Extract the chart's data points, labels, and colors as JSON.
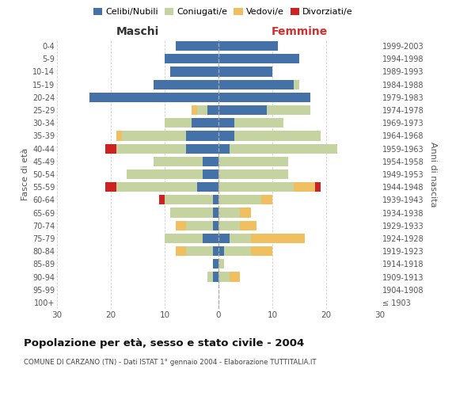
{
  "age_groups": [
    "100+",
    "95-99",
    "90-94",
    "85-89",
    "80-84",
    "75-79",
    "70-74",
    "65-69",
    "60-64",
    "55-59",
    "50-54",
    "45-49",
    "40-44",
    "35-39",
    "30-34",
    "25-29",
    "20-24",
    "15-19",
    "10-14",
    "5-9",
    "0-4"
  ],
  "birth_years": [
    "≤ 1903",
    "1904-1908",
    "1909-1913",
    "1914-1918",
    "1919-1923",
    "1924-1928",
    "1929-1933",
    "1934-1938",
    "1939-1943",
    "1944-1948",
    "1949-1953",
    "1954-1958",
    "1959-1963",
    "1964-1968",
    "1969-1973",
    "1974-1978",
    "1979-1983",
    "1984-1988",
    "1989-1993",
    "1994-1998",
    "1999-2003"
  ],
  "colors": {
    "celibi": "#4472a8",
    "coniugati": "#c5d3a0",
    "vedovi": "#f0c060",
    "divorziati": "#cc2222"
  },
  "maschi": {
    "celibi": [
      0,
      0,
      1,
      1,
      1,
      3,
      1,
      1,
      1,
      4,
      3,
      3,
      6,
      6,
      5,
      2,
      24,
      12,
      9,
      10,
      8
    ],
    "coniugati": [
      0,
      0,
      1,
      0,
      5,
      7,
      5,
      8,
      9,
      15,
      14,
      9,
      13,
      12,
      5,
      2,
      0,
      0,
      0,
      0,
      0
    ],
    "vedovi": [
      0,
      0,
      0,
      0,
      2,
      0,
      2,
      0,
      0,
      0,
      0,
      0,
      0,
      1,
      0,
      1,
      0,
      0,
      0,
      0,
      0
    ],
    "divorziati": [
      0,
      0,
      0,
      0,
      0,
      0,
      0,
      0,
      1,
      2,
      0,
      0,
      2,
      0,
      0,
      0,
      0,
      0,
      0,
      0,
      0
    ]
  },
  "femmine": {
    "celibi": [
      0,
      0,
      0,
      0,
      1,
      2,
      0,
      0,
      0,
      0,
      0,
      0,
      2,
      3,
      3,
      9,
      17,
      14,
      10,
      15,
      11
    ],
    "coniugati": [
      0,
      0,
      2,
      1,
      5,
      4,
      4,
      4,
      8,
      14,
      13,
      13,
      20,
      16,
      9,
      8,
      0,
      1,
      0,
      0,
      0
    ],
    "vedovi": [
      0,
      0,
      2,
      0,
      4,
      10,
      3,
      2,
      2,
      4,
      0,
      0,
      0,
      0,
      0,
      0,
      0,
      0,
      0,
      0,
      0
    ],
    "divorziati": [
      0,
      0,
      0,
      0,
      0,
      0,
      0,
      0,
      0,
      1,
      0,
      0,
      0,
      0,
      0,
      0,
      0,
      0,
      0,
      0,
      0
    ]
  },
  "xlim": 30,
  "title": "Popolazione per età, sesso e stato civile - 2004",
  "subtitle": "COMUNE DI CARZANO (TN) - Dati ISTAT 1° gennaio 2004 - Elaborazione TUTTITALIA.IT",
  "xlabel_left": "Maschi",
  "xlabel_right": "Femmine",
  "ylabel_left": "Fasce di età",
  "ylabel_right": "Anni di nascita",
  "legend_labels": [
    "Celibi/Nubili",
    "Coniugati/e",
    "Vedovi/e",
    "Divorziati/e"
  ],
  "bg_color": "#ffffff",
  "grid_color": "#cccccc",
  "maschi_label_color": "#333333",
  "femmine_label_color": "#cc3333"
}
